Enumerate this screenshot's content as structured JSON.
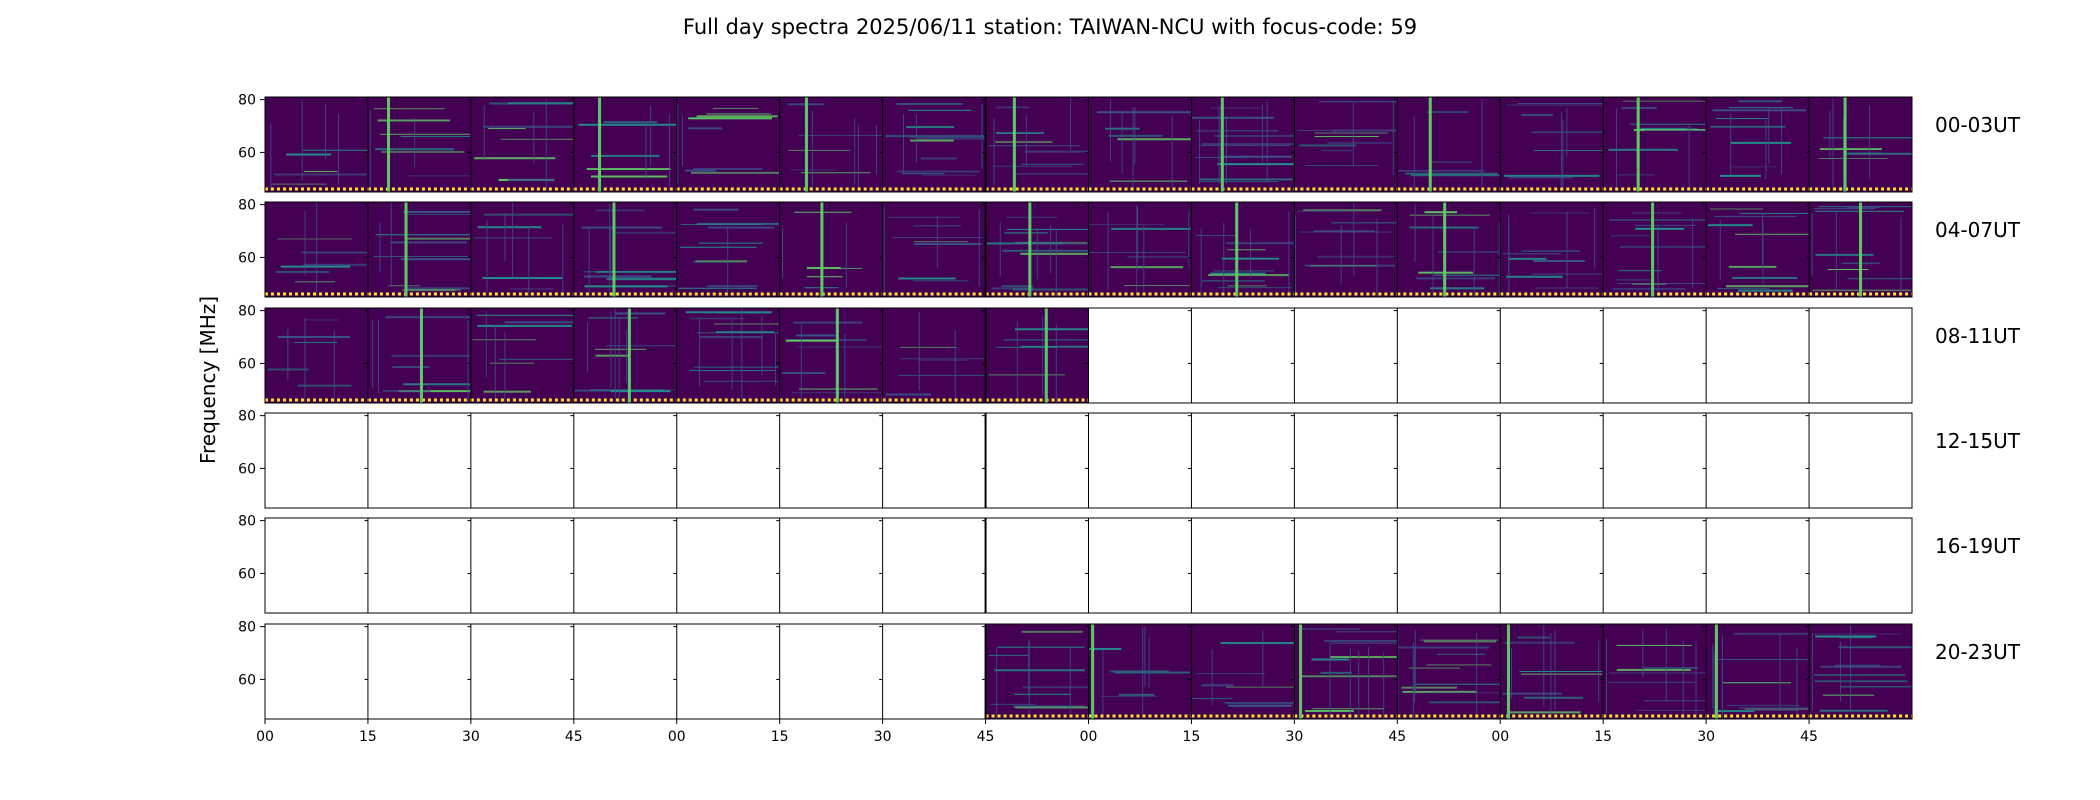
{
  "chart_data": {
    "type": "heatmap",
    "title": "Full day spectra 2025/06/11 station: TAIWAN-NCU with focus-code: 59",
    "ylabel": "Frequency [MHz]",
    "ylim": [
      45,
      81
    ],
    "yticks": [
      60,
      80
    ],
    "xticks": [
      "00",
      "15",
      "30",
      "45",
      "00",
      "15",
      "30",
      "45",
      "00",
      "15",
      "30",
      "45",
      "00",
      "15",
      "30",
      "45"
    ],
    "segment_minutes": 15,
    "rows": [
      {
        "label": "00-03UT",
        "segments": [
          1,
          1,
          1,
          1,
          1,
          1,
          1,
          1,
          1,
          1,
          1,
          1,
          1,
          1,
          1,
          1
        ],
        "bursts": [
          1.2,
          3.25,
          5.26,
          7.28,
          9.3,
          11.32,
          13.34,
          15.35
        ]
      },
      {
        "label": "04-07UT",
        "segments": [
          1,
          1,
          1,
          1,
          1,
          1,
          1,
          1,
          1,
          1,
          1,
          1,
          1,
          1,
          1,
          1
        ],
        "bursts": [
          1.37,
          3.39,
          5.41,
          7.43,
          9.44,
          11.46,
          13.48,
          15.5
        ]
      },
      {
        "label": "08-11UT",
        "segments": [
          1,
          1,
          1,
          1,
          1,
          1,
          1,
          1,
          0,
          0,
          0,
          0,
          0,
          0,
          0,
          0
        ],
        "bursts": [
          1.52,
          3.54,
          5.56,
          7.59
        ]
      },
      {
        "label": "12-15UT",
        "segments": [
          0,
          0,
          0,
          0,
          0,
          0,
          0,
          0,
          0,
          0,
          0,
          0,
          0,
          0,
          0,
          0
        ],
        "bursts": []
      },
      {
        "label": "16-19UT",
        "segments": [
          0,
          0,
          0,
          0,
          0,
          0,
          0,
          0,
          0,
          0,
          0,
          0,
          0,
          0,
          0,
          0
        ],
        "bursts": []
      },
      {
        "label": "20-23UT",
        "segments": [
          0,
          0,
          0,
          0,
          0,
          0,
          0,
          1,
          1,
          1,
          1,
          1,
          1,
          1,
          1,
          1
        ],
        "bursts": [
          8.04,
          10.06,
          12.08,
          14.1
        ]
      }
    ],
    "colormap": [
      "#440154",
      "#3b528b",
      "#21918c",
      "#5ec962",
      "#fde725"
    ],
    "grid": false
  }
}
